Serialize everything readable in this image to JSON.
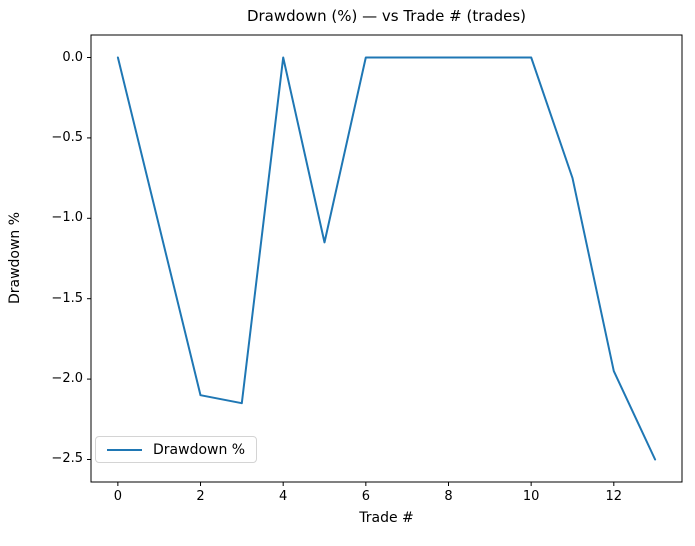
{
  "chart_data": {
    "type": "line",
    "title": "Drawdown (%) — vs Trade # (trades)",
    "xlabel": "Trade #",
    "ylabel": "Drawdown %",
    "x": [
      0,
      1,
      2,
      3,
      4,
      5,
      6,
      7,
      8,
      9,
      10,
      11,
      12,
      13
    ],
    "series": [
      {
        "name": "Drawdown %",
        "color": "#1f77b4",
        "values": [
          0.0,
          -1.05,
          -2.1,
          -2.15,
          0.0,
          -1.15,
          0.0,
          0.0,
          0.0,
          0.0,
          0.0,
          -0.75,
          -1.95,
          -2.5
        ]
      }
    ],
    "xlim": [
      -0.65,
      13.65
    ],
    "ylim": [
      -2.64,
      0.14
    ],
    "x_ticks": [
      0,
      2,
      4,
      6,
      8,
      10,
      12
    ],
    "x_tick_labels": [
      "0",
      "2",
      "4",
      "6",
      "8",
      "10",
      "12"
    ],
    "y_ticks": [
      0.0,
      -0.5,
      -1.0,
      -1.5,
      -2.0,
      -2.5
    ],
    "y_tick_labels": [
      "0.0",
      "−0.5",
      "−1.0",
      "−1.5",
      "−2.0",
      "−2.5"
    ],
    "grid": false,
    "legend": {
      "position": "lower left",
      "entries": [
        "Drawdown %"
      ]
    },
    "spine_color": "#000000",
    "background_color": "#ffffff"
  }
}
